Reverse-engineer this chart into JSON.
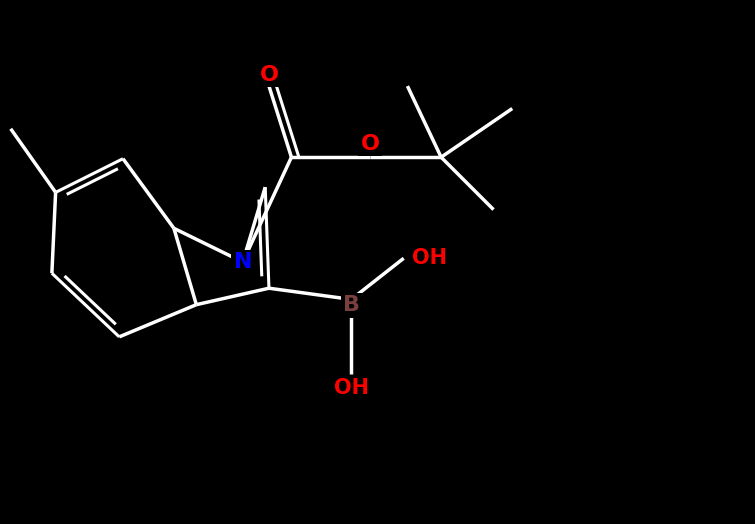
{
  "background_color": "#000000",
  "bond_color": "#ffffff",
  "N_color": "#0000ff",
  "O_color": "#ff0000",
  "B_color": "#7a4040",
  "OH_color": "#ff0000",
  "lw": 2.5,
  "lw2": 2.2,
  "fs": 16,
  "figsize": [
    7.55,
    5.24
  ],
  "dpi": 100,
  "xlim": [
    0,
    10
  ],
  "ylim": [
    0,
    7
  ]
}
